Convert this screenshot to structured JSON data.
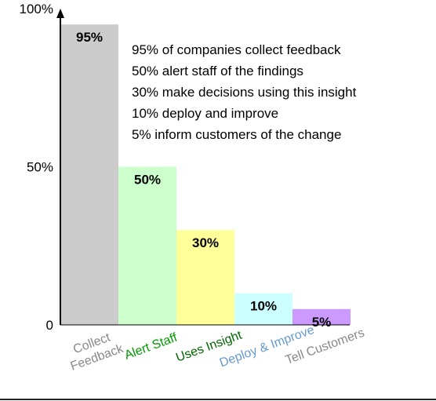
{
  "chart_data": {
    "type": "bar",
    "title": "",
    "xlabel": "",
    "ylabel": "",
    "categories": [
      "Collect Feedback",
      "Alert Staff",
      "Uses Insight",
      "Deploy & Improve",
      "Tell Customers"
    ],
    "category_lines": [
      [
        "Collect",
        "Feedback"
      ],
      [
        "Alert Staff"
      ],
      [
        "Uses Insight"
      ],
      [
        "Deploy & Improve"
      ],
      [
        "Tell Customers"
      ]
    ],
    "values": [
      95,
      50,
      30,
      10,
      5
    ],
    "data_labels": [
      "95%",
      "50%",
      "30%",
      "10%",
      "5%"
    ],
    "ylim": [
      0,
      100
    ],
    "yticks": [
      {
        "value": 0,
        "label": "0"
      },
      {
        "value": 50,
        "label": "50%"
      },
      {
        "value": 100,
        "label": "100%"
      }
    ],
    "bar_colors": [
      "#cccccc",
      "#ccffcc",
      "#ffff99",
      "#ccffff",
      "#cc99ff"
    ],
    "category_label_colors": [
      "#888888",
      "#009900",
      "#006600",
      "#6699cc",
      "#888888"
    ],
    "grid": false,
    "annotations": [
      "95% of companies collect feedback",
      "50% alert staff of the findings",
      "30% make decisions using this insight",
      "10% deploy and improve",
      "5% inform customers of the change"
    ]
  }
}
